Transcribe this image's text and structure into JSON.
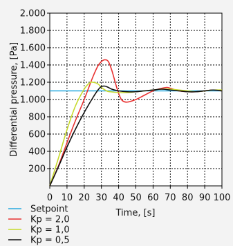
{
  "chart_data": {
    "type": "line",
    "xlabel": "Time, [s]",
    "ylabel": "Differential pressure, [Pa]",
    "xlim": [
      0,
      100
    ],
    "ylim": [
      0,
      2000
    ],
    "x_ticks": [
      "0",
      "10",
      "20",
      "30",
      "40",
      "50",
      "60",
      "70",
      "80",
      "90",
      "100"
    ],
    "y_ticks": [
      "200",
      "400",
      "600",
      "800",
      "1.000",
      "1.200",
      "1.400",
      "1.600",
      "1.800",
      "2.000"
    ],
    "grid": true,
    "legend_position": "bottom-left",
    "series": [
      {
        "name": "Setpoint",
        "color": "#29a9e0",
        "x": [
          0,
          100
        ],
        "y": [
          1100,
          1100
        ]
      },
      {
        "name": "Kp = 2,0",
        "color": "#e8302f",
        "x": [
          0,
          5,
          10,
          15,
          20,
          25,
          28,
          30,
          32,
          34,
          36,
          38,
          40,
          42,
          45,
          50,
          55,
          60,
          65,
          68,
          70,
          75,
          80,
          85,
          90,
          95,
          100
        ],
        "y": [
          0,
          230,
          500,
          760,
          1000,
          1260,
          1390,
          1440,
          1460,
          1440,
          1340,
          1200,
          1070,
          990,
          970,
          1000,
          1050,
          1100,
          1130,
          1140,
          1130,
          1100,
          1090,
          1090,
          1100,
          1110,
          1100
        ]
      },
      {
        "name": "Kp = 1,0",
        "color": "#c6d92a",
        "x": [
          0,
          5,
          10,
          15,
          20,
          23,
          25,
          28,
          30,
          33,
          35,
          40,
          45,
          50,
          55,
          60,
          65,
          70,
          75,
          80,
          85,
          90,
          95,
          100
        ],
        "y": [
          0,
          320,
          650,
          930,
          1120,
          1190,
          1200,
          1180,
          1140,
          1100,
          1090,
          1080,
          1080,
          1090,
          1100,
          1110,
          1120,
          1120,
          1110,
          1100,
          1090,
          1100,
          1110,
          1110
        ]
      },
      {
        "name": "Kp = 0,5",
        "color": "#111111",
        "x": [
          0,
          5,
          10,
          15,
          20,
          25,
          28,
          30,
          32,
          34,
          36,
          40,
          45,
          50,
          55,
          60,
          65,
          70,
          75,
          80,
          85,
          90,
          95,
          100
        ],
        "y": [
          0,
          220,
          450,
          660,
          850,
          1020,
          1110,
          1150,
          1155,
          1140,
          1120,
          1100,
          1090,
          1090,
          1100,
          1110,
          1120,
          1110,
          1100,
          1090,
          1090,
          1100,
          1110,
          1100
        ]
      }
    ]
  }
}
